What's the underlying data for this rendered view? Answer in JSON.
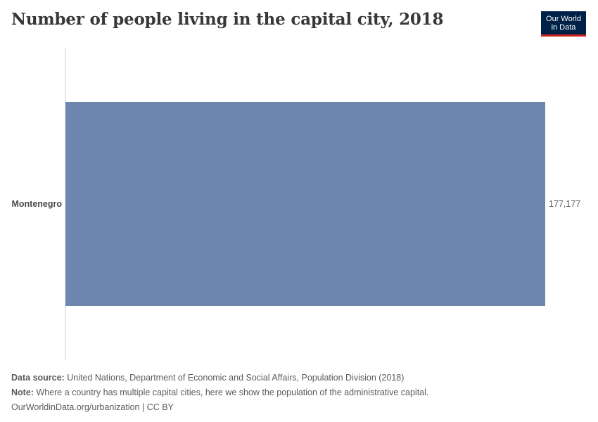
{
  "header": {
    "title": "Number of people living in the capital city, 2018",
    "logo_line1": "Our World",
    "logo_line2": "in Data"
  },
  "chart_data": {
    "type": "bar",
    "orientation": "horizontal",
    "categories": [
      "Montenegro"
    ],
    "values": [
      177177
    ],
    "value_labels": [
      "177,177"
    ],
    "xlim": [
      0,
      177177
    ],
    "bar_color": "#6f87ae",
    "grid": false
  },
  "footer": {
    "source_label": "Data source:",
    "source_text": "United Nations, Department of Economic and Social Affairs, Population Division (2018)",
    "note_label": "Note:",
    "note_text": "Where a country has multiple capital cities, here we show the population of the administrative capital.",
    "link_text": "OurWorldinData.org/urbanization | CC BY"
  },
  "colors": {
    "logo_bg": "#002147",
    "logo_accent": "#ce261e",
    "bar": "#6f87ae",
    "axis": "#d0d0d0"
  }
}
